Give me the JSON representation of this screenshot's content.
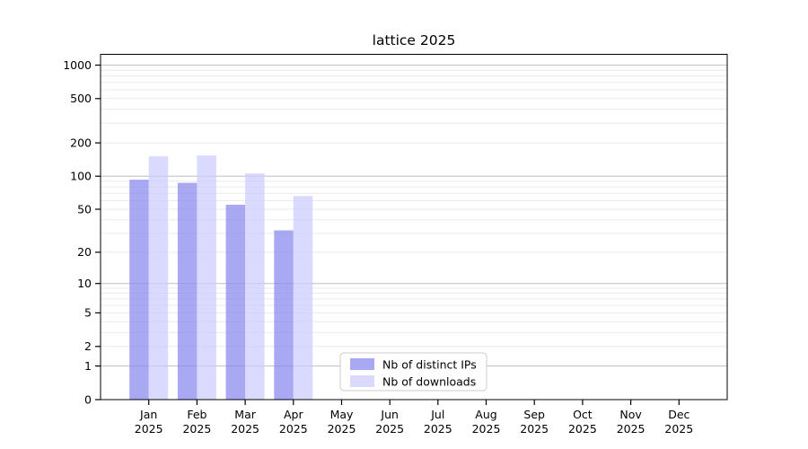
{
  "title": "lattice 2025",
  "chart_data": {
    "type": "bar",
    "title": "lattice 2025",
    "xlabel": "",
    "ylabel": "",
    "yscale": "log1p",
    "ylim": [
      0,
      1250
    ],
    "xlim": [
      -1,
      12
    ],
    "grid": "on",
    "legend_position": "lower center",
    "year": "2025",
    "month_labels": [
      "Jan",
      "Feb",
      "Mar",
      "Apr",
      "May",
      "Jun",
      "Jul",
      "Aug",
      "Sep",
      "Oct",
      "Nov",
      "Dec"
    ],
    "categories": [
      "Jan 2025",
      "Feb 2025",
      "Mar 2025",
      "Apr 2025",
      "May 2025",
      "Jun 2025",
      "Jul 2025",
      "Aug 2025",
      "Sep 2025",
      "Oct 2025",
      "Nov 2025",
      "Dec 2025"
    ],
    "yticks": [
      0,
      1,
      2,
      5,
      10,
      20,
      50,
      100,
      200,
      500,
      1000
    ],
    "bar_width": 0.4,
    "series": [
      {
        "name": "Nb of distinct IPs",
        "color": "rgba(136,136,238,0.72)",
        "values": [
          93,
          87,
          55,
          32,
          0,
          0,
          0,
          0,
          0,
          0,
          0,
          0
        ]
      },
      {
        "name": "Nb of downloads",
        "color": "rgba(204,204,255,0.72)",
        "values": [
          151,
          154,
          106,
          66,
          0,
          0,
          0,
          0,
          0,
          0,
          0,
          0
        ]
      }
    ],
    "gridline_major_values": [
      1,
      10,
      100,
      1000
    ],
    "colors": {
      "background": "#ffffff",
      "spine": "#000000",
      "grid_minor": "#eaeaea",
      "grid_major": "#c4c4c4",
      "legend_border": "#cccccc",
      "legend_background": "#ffffff",
      "tick_label": "#000000"
    }
  }
}
